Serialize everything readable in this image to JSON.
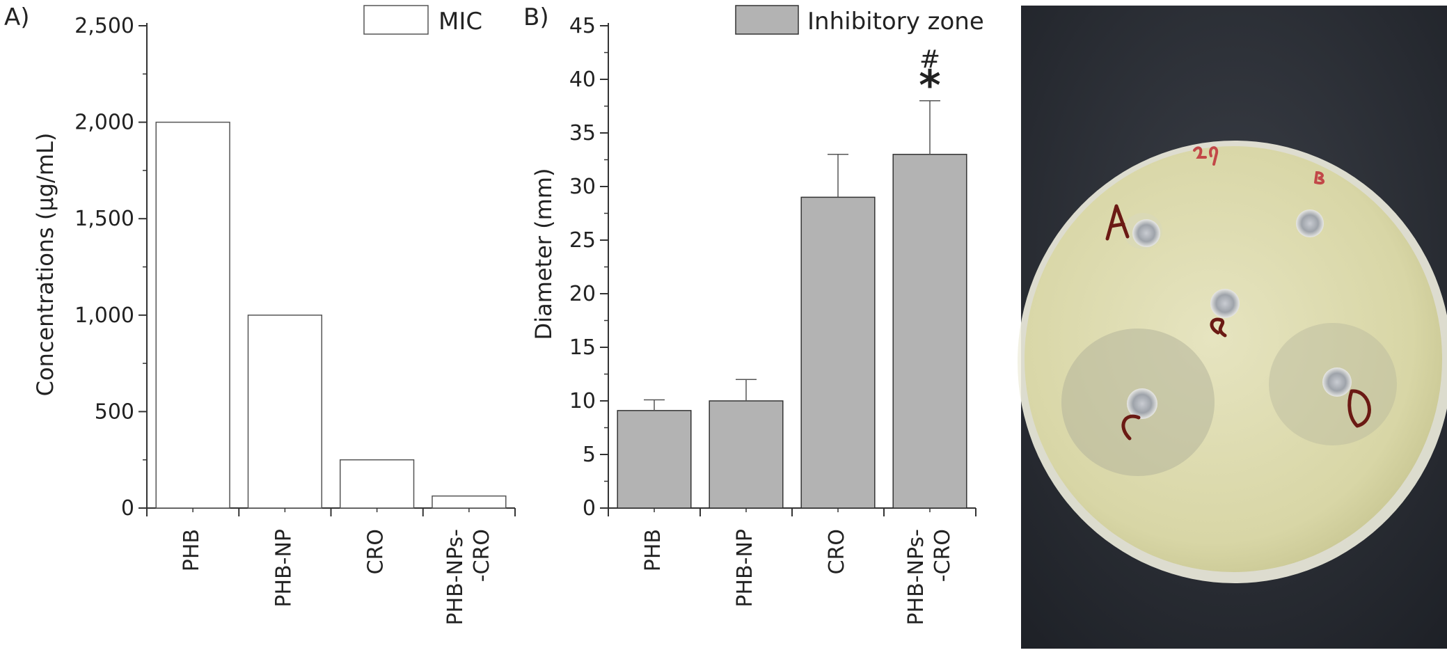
{
  "panels": {
    "a": "A)",
    "b": "B)"
  },
  "chart_data": [
    {
      "type": "bar",
      "categories": [
        "PHB",
        "PHB-NP",
        "CRO",
        "PHB-NPs-\n-CRO"
      ],
      "series": [
        {
          "name": "MIC",
          "values": [
            2000,
            1000,
            250,
            62.5
          ]
        }
      ],
      "ylabel": "Concentrations (µg/mL)",
      "ylim": [
        0,
        2500
      ],
      "yticks": [
        0,
        500,
        1000,
        1500,
        2000,
        2500
      ],
      "ytick_labels": [
        "0",
        "500",
        "1,000",
        "1,500",
        "2,000",
        "2,500"
      ],
      "grid": false,
      "legend": "top-right",
      "bar_fill": "#ffffff",
      "bar_stroke": "#555555"
    },
    {
      "type": "bar",
      "categories": [
        "PHB",
        "PHB-NP",
        "CRO",
        "PHB-NPs-\n-CRO"
      ],
      "series": [
        {
          "name": "Inhibitory zone",
          "values": [
            9.1,
            10.0,
            29.0,
            33.0
          ],
          "errors": [
            1.0,
            2.0,
            4.0,
            5.0
          ]
        }
      ],
      "ylabel": "Diameter (mm)",
      "ylim": [
        0,
        45
      ],
      "yticks": [
        0,
        5,
        10,
        15,
        20,
        25,
        30,
        35,
        40,
        45
      ],
      "ytick_labels": [
        "0",
        "5",
        "10",
        "15",
        "20",
        "25",
        "30",
        "35",
        "40",
        "45"
      ],
      "grid": false,
      "legend": "top-right",
      "annotations": [
        {
          "category_index": 3,
          "symbols": [
            "#",
            "*"
          ]
        }
      ],
      "bar_fill": "#b3b3b3",
      "bar_stroke": "#333333"
    }
  ],
  "photo": {
    "labels": [
      "29",
      "A",
      "B",
      "C",
      "D",
      "E"
    ]
  }
}
